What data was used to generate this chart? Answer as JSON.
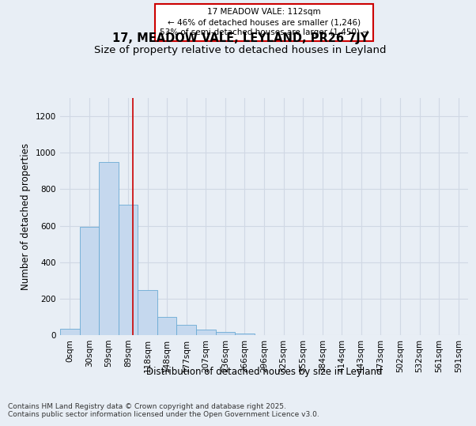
{
  "title": "17, MEADOW VALE, LEYLAND, PR26 7JY",
  "subtitle": "Size of property relative to detached houses in Leyland",
  "xlabel": "Distribution of detached houses by size in Leyland",
  "ylabel": "Number of detached properties",
  "footer_line1": "Contains HM Land Registry data © Crown copyright and database right 2025.",
  "footer_line2": "Contains public sector information licensed under the Open Government Licence v3.0.",
  "bar_labels": [
    "0sqm",
    "30sqm",
    "59sqm",
    "89sqm",
    "118sqm",
    "148sqm",
    "177sqm",
    "207sqm",
    "236sqm",
    "266sqm",
    "296sqm",
    "325sqm",
    "355sqm",
    "384sqm",
    "414sqm",
    "443sqm",
    "473sqm",
    "502sqm",
    "532sqm",
    "561sqm",
    "591sqm"
  ],
  "bar_values": [
    35,
    595,
    950,
    715,
    245,
    100,
    55,
    30,
    18,
    8,
    0,
    0,
    0,
    0,
    0,
    0,
    0,
    0,
    0,
    0,
    0
  ],
  "bar_color": "#c5d8ee",
  "bar_edge_color": "#6aaad4",
  "annotation_text": "17 MEADOW VALE: 112sqm\n← 46% of detached houses are smaller (1,246)\n53% of semi-detached houses are larger (1,450) →",
  "annotation_box_color": "white",
  "annotation_box_edge_color": "#cc0000",
  "vline_x": 3.73,
  "vline_color": "#cc0000",
  "ylim": [
    0,
    1300
  ],
  "yticks": [
    0,
    200,
    400,
    600,
    800,
    1000,
    1200
  ],
  "background_color": "#e8eef5",
  "grid_color": "#d0d8e4",
  "title_fontsize": 10.5,
  "subtitle_fontsize": 9.5,
  "axis_label_fontsize": 8.5,
  "tick_fontsize": 7.5,
  "annotation_fontsize": 7.5,
  "footer_fontsize": 6.5
}
